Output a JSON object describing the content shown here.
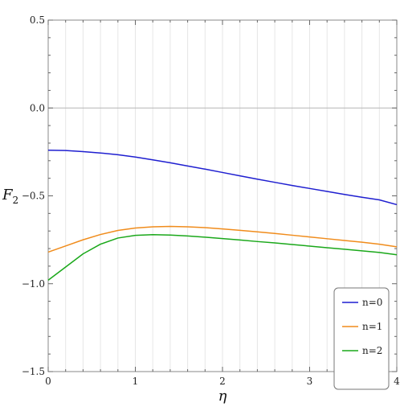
{
  "chart_data": {
    "type": "line",
    "title": "",
    "xlabel": "η",
    "ylabel_main": "F",
    "ylabel_sub": "2",
    "xlim": [
      0,
      4
    ],
    "ylim": [
      -1.5,
      0.5
    ],
    "x_ticks": [
      0,
      1,
      2,
      3,
      4
    ],
    "y_ticks": [
      0.5,
      0.0,
      -0.5,
      -1.0,
      -1.5
    ],
    "y_tick_labels": [
      "0.5",
      "0.0",
      "−0.5",
      "−1.0",
      "−1.5"
    ],
    "grid": "vertical",
    "legend_position": "bottom-right",
    "series": [
      {
        "name": "n=0",
        "color": "#1f1fd0",
        "x": [
          0,
          0.2,
          0.4,
          0.6,
          0.8,
          1.0,
          1.2,
          1.4,
          1.6,
          1.8,
          2.0,
          2.2,
          2.4,
          2.6,
          2.8,
          3.0,
          3.2,
          3.4,
          3.6,
          3.8,
          4.0
        ],
        "y": [
          -0.24,
          -0.242,
          -0.248,
          -0.256,
          -0.266,
          -0.279,
          -0.295,
          -0.312,
          -0.33,
          -0.348,
          -0.367,
          -0.386,
          -0.405,
          -0.423,
          -0.441,
          -0.458,
          -0.475,
          -0.492,
          -0.508,
          -0.523,
          -0.55
        ]
      },
      {
        "name": "n=1",
        "color": "#f08c1c",
        "x": [
          0,
          0.2,
          0.4,
          0.6,
          0.8,
          1.0,
          1.2,
          1.4,
          1.6,
          1.8,
          2.0,
          2.2,
          2.4,
          2.6,
          2.8,
          3.0,
          3.2,
          3.4,
          3.6,
          3.8,
          4.0
        ],
        "y": [
          -0.82,
          -0.785,
          -0.75,
          -0.72,
          -0.697,
          -0.683,
          -0.676,
          -0.674,
          -0.676,
          -0.681,
          -0.688,
          -0.696,
          -0.705,
          -0.714,
          -0.724,
          -0.734,
          -0.744,
          -0.754,
          -0.764,
          -0.775,
          -0.79
        ]
      },
      {
        "name": "n=2",
        "color": "#1aa81a",
        "x": [
          0,
          0.2,
          0.4,
          0.6,
          0.8,
          1.0,
          1.2,
          1.4,
          1.6,
          1.8,
          2.0,
          2.2,
          2.4,
          2.6,
          2.8,
          3.0,
          3.2,
          3.4,
          3.6,
          3.8,
          4.0
        ],
        "y": [
          -0.98,
          -0.905,
          -0.83,
          -0.775,
          -0.74,
          -0.725,
          -0.721,
          -0.723,
          -0.728,
          -0.735,
          -0.743,
          -0.751,
          -0.76,
          -0.768,
          -0.777,
          -0.786,
          -0.795,
          -0.804,
          -0.813,
          -0.822,
          -0.835
        ]
      }
    ]
  }
}
